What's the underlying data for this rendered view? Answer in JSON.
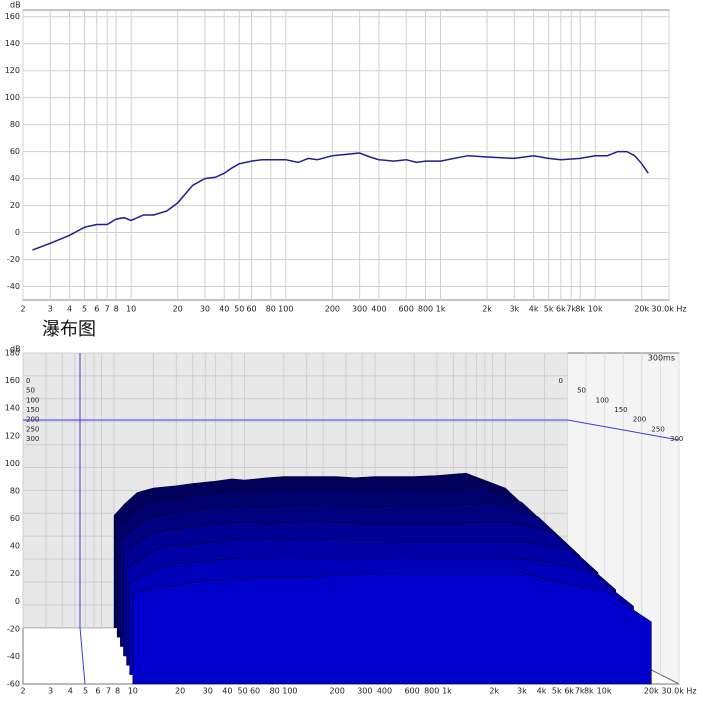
{
  "heading": "瀑布图",
  "chart_data": [
    {
      "type": "line",
      "ylabel": "dB",
      "xscale": "log",
      "grid": true,
      "color": "#1f1f8f",
      "xlim": [
        2,
        30000
      ],
      "ylim": [
        -50,
        165
      ],
      "yticks": [
        160,
        140,
        120,
        100,
        80,
        60,
        40,
        20,
        0,
        -20,
        -40
      ],
      "xticks": [
        2,
        3,
        4,
        5,
        6,
        7,
        8,
        10,
        20,
        30,
        40,
        50,
        60,
        80,
        100,
        200,
        300,
        400,
        600,
        800,
        {
          "value": 1000,
          "label": "1k"
        },
        {
          "value": 2000,
          "label": "2k"
        },
        {
          "value": 3000,
          "label": "3k"
        },
        {
          "value": 4000,
          "label": "4k"
        },
        {
          "value": 5000,
          "label": "5k"
        },
        {
          "value": 6000,
          "label": "6k"
        },
        {
          "value": 7000,
          "label": "7k"
        },
        {
          "value": 8000,
          "label": "8k"
        },
        {
          "value": 10000,
          "label": "10k"
        },
        {
          "value": 20000,
          "label": "20k"
        },
        {
          "value": 30000,
          "label": "30.0k Hz"
        }
      ],
      "x": [
        2.3,
        3,
        4,
        5,
        6,
        7,
        8,
        9,
        10,
        12,
        14,
        17,
        20,
        25,
        30,
        35,
        40,
        45,
        50,
        60,
        70,
        100,
        120,
        140,
        160,
        200,
        250,
        300,
        350,
        400,
        500,
        600,
        700,
        800,
        1000,
        1500,
        2000,
        3000,
        4000,
        5000,
        6000,
        8000,
        10000,
        12000,
        14000,
        16000,
        18000,
        20000,
        22000
      ],
      "values": [
        -13,
        -8,
        -2,
        4,
        6,
        6,
        10,
        11,
        9,
        13,
        13,
        16,
        22,
        35,
        40,
        41,
        44,
        48,
        51,
        53,
        54,
        54,
        52,
        55,
        54,
        57,
        58,
        59,
        56,
        54,
        53,
        54,
        52,
        53,
        53,
        57,
        56,
        55,
        57,
        55,
        54,
        55,
        57,
        57,
        60,
        60,
        57,
        51,
        44
      ]
    },
    {
      "type": "waterfall",
      "ylabel": "dB",
      "xscale": "log",
      "grid": true,
      "time_label": "300ms",
      "xlim": [
        2,
        30000
      ],
      "ylim": [
        -60,
        180
      ],
      "zlim": [
        0,
        300
      ],
      "yticks": [
        180,
        160,
        140,
        120,
        100,
        80,
        60,
        40,
        20,
        0,
        -20,
        -40,
        -60
      ],
      "zticks": [
        0,
        50,
        100,
        150,
        200,
        250,
        300
      ],
      "xticks": [
        2,
        3,
        4,
        5,
        6,
        7,
        8,
        10,
        20,
        30,
        40,
        50,
        60,
        80,
        100,
        200,
        300,
        400,
        600,
        800,
        {
          "value": 1000,
          "label": "1k"
        },
        {
          "value": 2000,
          "label": "2k"
        },
        {
          "value": 3000,
          "label": "3k"
        },
        {
          "value": 4000,
          "label": "4k"
        },
        {
          "value": 5000,
          "label": "5k"
        },
        {
          "value": 6000,
          "label": "6k"
        },
        {
          "value": 7000,
          "label": "7k"
        },
        {
          "value": 8000,
          "label": "8k"
        },
        {
          "value": 10000,
          "label": "10k"
        },
        {
          "value": 20000,
          "label": "20k"
        },
        {
          "value": 30000,
          "label": "30.0k Hz"
        }
      ],
      "x": [
        10,
        12,
        15,
        20,
        30,
        40,
        60,
        80,
        100,
        150,
        200,
        300,
        500,
        700,
        1000,
        2000,
        3000,
        5000,
        10000,
        20000
      ],
      "slices": [
        {
          "time": 0,
          "values": [
            38,
            48,
            58,
            62,
            64,
            66,
            68,
            70,
            69,
            71,
            72,
            72,
            72,
            71,
            72,
            72,
            73,
            75,
            62,
            30
          ]
        },
        {
          "time": 50,
          "values": [
            32,
            42,
            52,
            56,
            58,
            60,
            62,
            63,
            62,
            64,
            65,
            64,
            64,
            63,
            64,
            64,
            65,
            67,
            54,
            22
          ]
        },
        {
          "time": 100,
          "values": [
            26,
            35,
            44,
            48,
            50,
            52,
            54,
            55,
            54,
            55,
            56,
            55,
            55,
            54,
            55,
            55,
            56,
            57,
            46,
            14
          ]
        },
        {
          "time": 150,
          "values": [
            20,
            28,
            36,
            40,
            42,
            44,
            46,
            46,
            45,
            46,
            47,
            46,
            45,
            45,
            45,
            45,
            46,
            46,
            37,
            6
          ]
        },
        {
          "time": 200,
          "values": [
            14,
            21,
            28,
            32,
            33,
            35,
            37,
            37,
            36,
            37,
            37,
            36,
            36,
            35,
            35,
            35,
            35,
            35,
            28,
            -2
          ]
        },
        {
          "time": 250,
          "values": [
            9,
            14,
            19,
            23,
            24,
            26,
            28,
            28,
            27,
            28,
            28,
            28,
            28,
            27,
            27,
            27,
            27,
            25,
            18,
            -9
          ]
        },
        {
          "time": 300,
          "values": [
            5,
            8,
            10,
            12,
            15,
            15,
            17,
            17,
            17,
            18,
            19,
            20,
            21,
            21,
            21,
            21,
            21,
            14,
            8,
            -15
          ]
        }
      ]
    }
  ]
}
